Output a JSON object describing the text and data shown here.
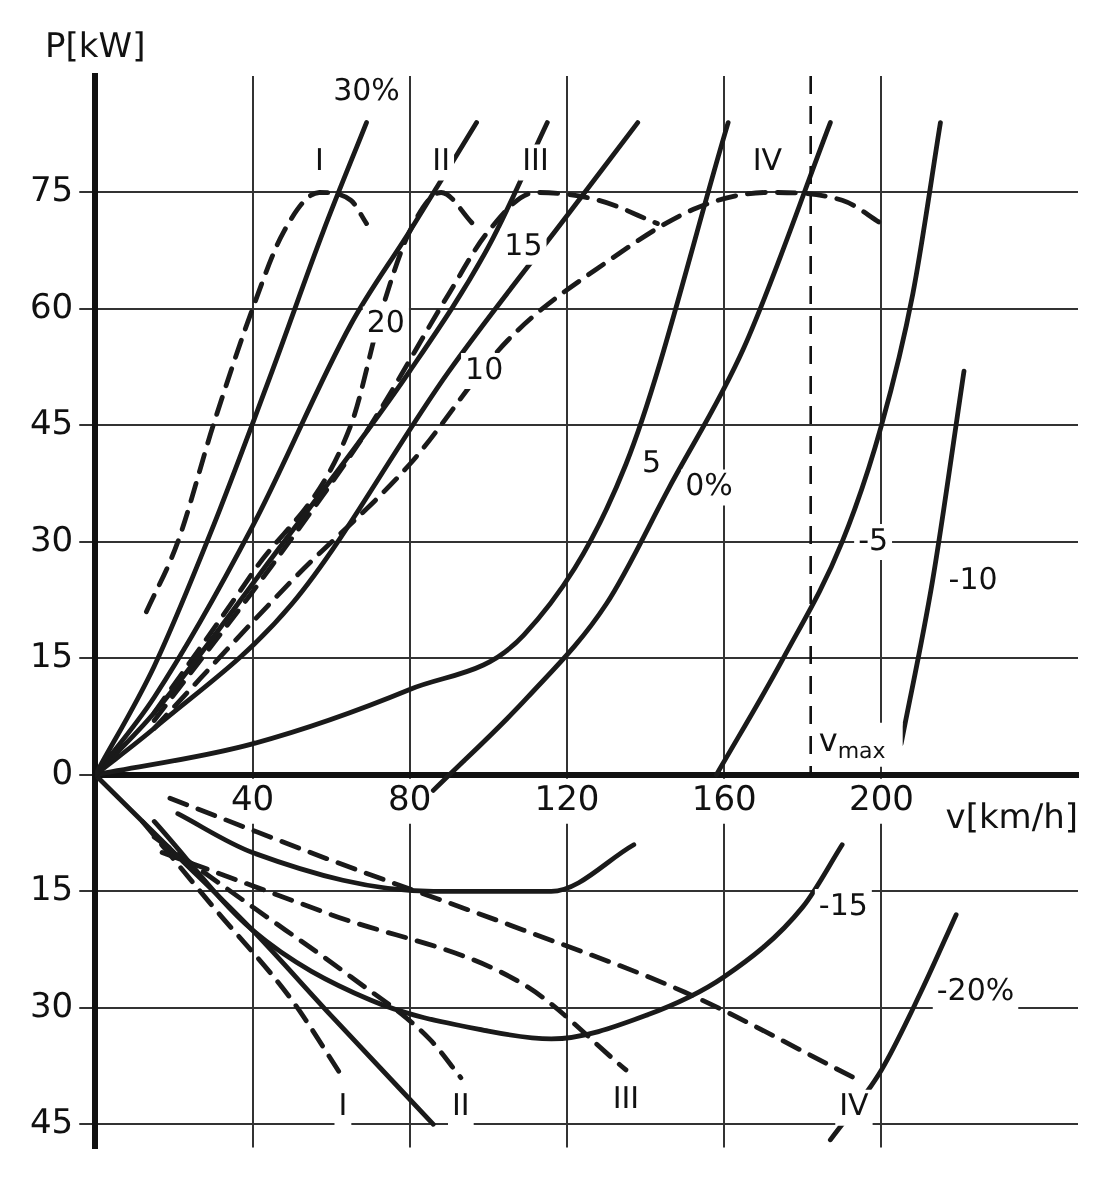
{
  "chart_data": {
    "type": "line",
    "xlabel": "v[km/h]",
    "ylabel": "P[kW]",
    "xlim": [
      0,
      250
    ],
    "xticks": [
      40,
      80,
      120,
      160,
      200
    ],
    "ylim": [
      -48,
      90
    ],
    "yticks": [
      {
        "value": -45,
        "label": "45"
      },
      {
        "value": -30,
        "label": "30"
      },
      {
        "value": -15,
        "label": "15"
      },
      0,
      15,
      30,
      45,
      60,
      75
    ],
    "grid": true,
    "legend": false,
    "series": [
      {
        "color": "#1a1a1a",
        "line_style": "solid",
        "x": [
          0,
          15,
          30,
          45,
          58,
          69
        ],
        "values": [
          0,
          14,
          32,
          52,
          70,
          84
        ]
      },
      {
        "color": "#1a1a1a",
        "line_style": "solid",
        "x": [
          0,
          15,
          40,
          65,
          80,
          97
        ],
        "values": [
          0,
          10,
          32,
          58,
          70,
          84
        ]
      },
      {
        "color": "#1a1a1a",
        "line_style": "solid",
        "x": [
          0,
          15,
          45,
          80,
          100,
          115
        ],
        "values": [
          0,
          8,
          28,
          52,
          68,
          84
        ]
      },
      {
        "color": "#1a1a1a",
        "line_style": "solid",
        "x": [
          0,
          15,
          50,
          90,
          120,
          138
        ],
        "values": [
          0,
          6,
          22,
          52,
          72,
          84
        ]
      },
      {
        "color": "#1a1a1a",
        "line_style": "solid",
        "x": [
          0,
          40,
          80,
          109,
          135,
          161
        ],
        "values": [
          0,
          4,
          11,
          18,
          40,
          84
        ]
      },
      {
        "color": "#1a1a1a",
        "line_style": "solid",
        "x": [
          86,
          110,
          130,
          146,
          165,
          187
        ],
        "values": [
          -2,
          10,
          22,
          37,
          55,
          84
        ]
      },
      {
        "color": "#1a1a1a",
        "line_style": "solid",
        "x": [
          158,
          175,
          190,
          200,
          208,
          215
        ],
        "values": [
          0,
          15,
          30,
          45,
          62,
          84
        ]
      },
      {
        "color": "#1a1a1a",
        "line_style": "solid",
        "x": [
          205,
          213,
          221
        ],
        "values": [
          4,
          25,
          52
        ]
      },
      {
        "color": "#1a1a1a",
        "line_style": "solid",
        "x": [
          21,
          40,
          86,
          116,
          137
        ],
        "values": [
          -5,
          -10,
          -15,
          -15,
          -9
        ]
      },
      {
        "color": "#1a1a1a",
        "line_style": "solid",
        "x": [
          0,
          20,
          40,
          60,
          86
        ],
        "values": [
          0,
          -10,
          -20,
          -31,
          -45
        ]
      },
      {
        "color": "#1a1a1a",
        "line_style": "solid",
        "x": [
          15,
          40,
          70,
          100,
          116,
          140,
          160,
          180,
          190
        ],
        "values": [
          -6,
          -20,
          -29,
          -33,
          -34,
          -31,
          -26,
          -17,
          -9
        ]
      },
      {
        "color": "#1a1a1a",
        "line_style": "solid",
        "x": [
          187,
          200,
          210,
          219
        ],
        "values": [
          -47,
          -38,
          -28,
          -18
        ]
      },
      {
        "color": "#1a1a1a",
        "line_style": "dashed",
        "x": [
          13,
          21,
          30,
          40,
          48,
          57,
          65,
          69
        ],
        "values": [
          21,
          30,
          45,
          60,
          70,
          75,
          74,
          71
        ]
      },
      {
        "color": "#1a1a1a",
        "line_style": "dashed",
        "x": [
          15,
          40,
          65,
          73,
          80,
          88,
          96
        ],
        "values": [
          8,
          26,
          45,
          60,
          70,
          75,
          71
        ]
      },
      {
        "color": "#1a1a1a",
        "line_style": "dashed",
        "x": [
          15,
          45,
          70,
          90,
          100,
          112,
          128,
          143
        ],
        "values": [
          7,
          27,
          45,
          62,
          70,
          75,
          74,
          71
        ]
      },
      {
        "color": "#1a1a1a",
        "line_style": "dashed",
        "x": [
          15,
          50,
          80,
          105,
          130,
          153,
          171,
          190,
          200
        ],
        "values": [
          6,
          25,
          40,
          56,
          66,
          73,
          75,
          74,
          71
        ]
      },
      {
        "color": "#1a1a1a",
        "line_style": "dashed",
        "x": [
          12,
          30,
          50,
          63
        ],
        "values": [
          -6,
          -17,
          -29,
          -39
        ]
      },
      {
        "color": "#1a1a1a",
        "line_style": "dashed",
        "x": [
          15,
          40,
          65,
          85,
          93
        ],
        "values": [
          -8,
          -17,
          -26,
          -34,
          -39
        ]
      },
      {
        "color": "#1a1a1a",
        "line_style": "dashed",
        "x": [
          17,
          60,
          109,
          135
        ],
        "values": [
          -10,
          -18,
          -27,
          -38
        ]
      },
      {
        "color": "#1a1a1a",
        "line_style": "dashed",
        "x": [
          19,
          60,
          109,
          150,
          193
        ],
        "values": [
          -3,
          -11,
          -20,
          -28,
          -39
        ]
      }
    ],
    "ref_lines": [
      {
        "axis": "x",
        "value": 182,
        "label": "v$_{max}$",
        "line_style": "dashed"
      }
    ],
    "annotations": [
      {
        "text": "I",
        "x": 57,
        "y": 75
      },
      {
        "text": "II",
        "x": 88,
        "y": 75
      },
      {
        "text": "III",
        "x": 112,
        "y": 75
      },
      {
        "text": "IV",
        "x": 171,
        "y": 75
      },
      {
        "text": "I",
        "x": 63,
        "y": -39
      },
      {
        "text": "II",
        "x": 93,
        "y": -39
      },
      {
        "text": "III",
        "x": 135,
        "y": -38
      },
      {
        "text": "IV",
        "x": 193,
        "y": -39
      },
      {
        "text": "30%",
        "x": 69,
        "y": 84
      },
      {
        "text": "20",
        "x": 65,
        "y": 58
      },
      {
        "text": "15",
        "x": 100,
        "y": 68
      },
      {
        "text": "10",
        "x": 90,
        "y": 52
      },
      {
        "text": "5",
        "x": 135,
        "y": 40
      },
      {
        "text": "0%",
        "x": 146,
        "y": 37
      },
      {
        "text": "-5",
        "x": 190,
        "y": 30
      },
      {
        "text": "-10",
        "x": 213,
        "y": 25
      },
      {
        "text": "-15",
        "x": 180,
        "y": -17
      },
      {
        "text": "-20%",
        "x": 210,
        "y": -28
      }
    ]
  }
}
